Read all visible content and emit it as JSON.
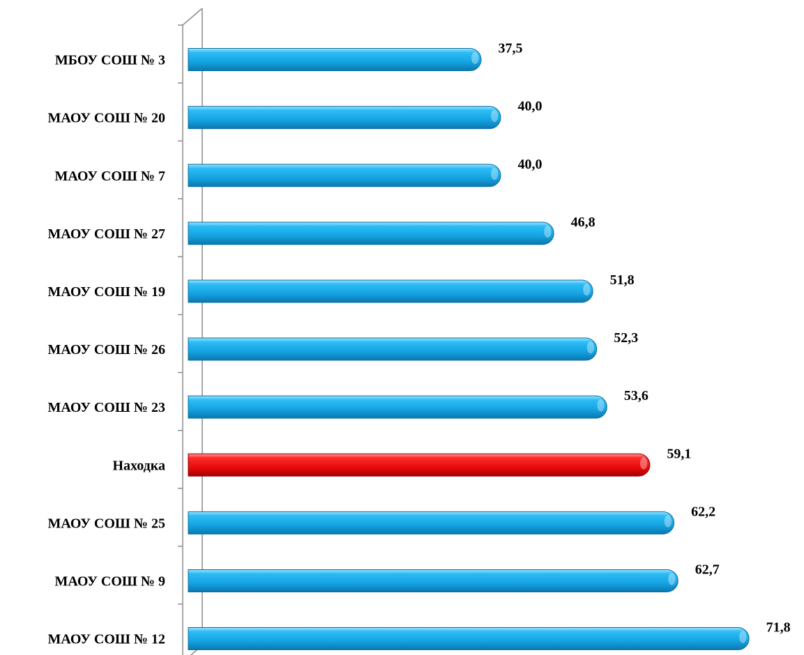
{
  "chart_data": {
    "type": "bar",
    "orientation": "horizontal",
    "title": "",
    "xlabel": "",
    "ylabel": "",
    "categories": [
      "МБОУ СОШ № 3",
      "МАОУ СОШ № 20",
      "МАОУ СОШ № 7",
      "МАОУ СОШ № 27",
      "МАОУ СОШ № 19",
      "МАОУ СОШ № 26",
      "МАОУ СОШ № 23",
      "Находка",
      "МАОУ СОШ № 25",
      "МАОУ СОШ № 9",
      "МАОУ СОШ № 12"
    ],
    "values": [
      37.5,
      40.0,
      40.0,
      46.8,
      51.8,
      52.3,
      53.6,
      59.1,
      62.2,
      62.7,
      71.8
    ],
    "value_labels": [
      "37,5",
      "40,0",
      "40,0",
      "46,8",
      "51,8",
      "52,3",
      "53,6",
      "59,1",
      "62,2",
      "62,7",
      "71,8"
    ],
    "highlighted_category": "Находка",
    "xlim": [
      0,
      72
    ],
    "grid": false,
    "legend": "none",
    "colors": {
      "bar": "#1aa8e6",
      "bar_highlight": "#ee1111",
      "axis": "#8c8c8c"
    }
  }
}
